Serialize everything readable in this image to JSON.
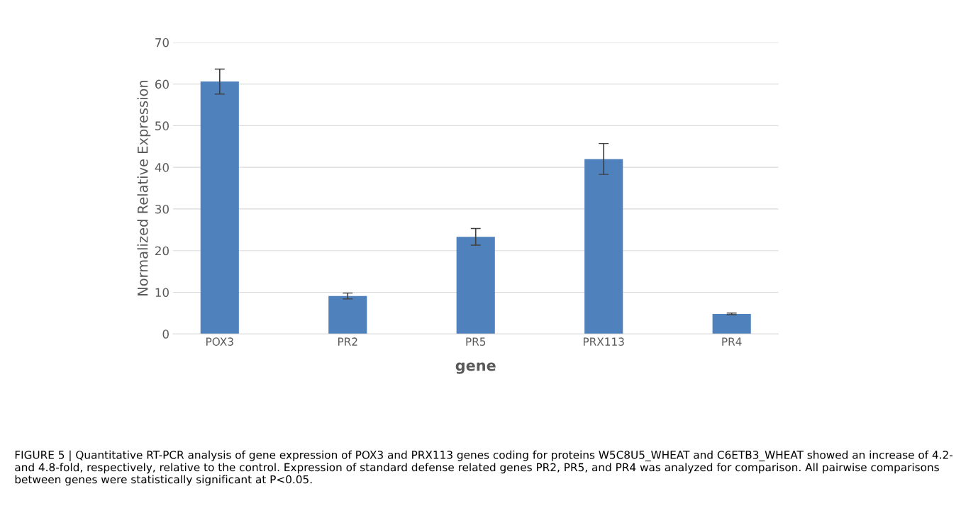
{
  "chart_data": {
    "type": "bar",
    "xlabel": "gene",
    "ylabel": "Normalized Relative Expression",
    "categories": [
      "POX3",
      "PR2",
      "PR5",
      "PRX113",
      "PR4"
    ],
    "values": [
      60.6,
      9.1,
      23.3,
      42.0,
      4.8
    ],
    "errors": [
      3.0,
      0.7,
      2.0,
      3.7,
      0.2
    ],
    "color": "#4f81bd",
    "ylim": [
      0,
      70
    ],
    "yticks": [
      0,
      10,
      20,
      30,
      40,
      50,
      60,
      70
    ],
    "grid": "y",
    "annotations": [
      "FIGURE 5 | Quantitative RT-PCR analysis of gene expression of POX3 and PRX113 genes coding for proteins W5C8U5_WHEAT and C6ETB3_WHEAT showed an increase of 4.2- and 4.8-fold, respectively, relative to the control. Expression of standard defense related genes PR2, PR5, and PR4 was analyzed for comparison. All pairwise comparisons between genes were statistically significant at P<0.05."
    ]
  }
}
